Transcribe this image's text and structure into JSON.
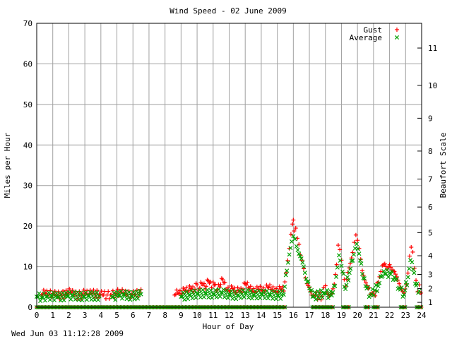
{
  "chart_data": {
    "type": "scatter",
    "title": "Wind Speed - 02 June 2009",
    "xlabel": "Hour of Day",
    "ylabel": "Miles per Hour",
    "y2label": "Beaufort Scale",
    "footer": "Wed Jun 03 11:12:28 2009",
    "xlim": [
      0,
      24
    ],
    "ylim": [
      0,
      70
    ],
    "x_ticks": [
      "0",
      "1",
      "2",
      "3",
      "4",
      "5",
      "6",
      "7",
      "8",
      "9",
      "10",
      "11",
      "12",
      "13",
      "14",
      "15",
      "16",
      "17",
      "18",
      "19",
      "20",
      "21",
      "22",
      "23",
      "24"
    ],
    "y_ticks": [
      "0",
      "10",
      "20",
      "30",
      "40",
      "50",
      "60",
      "70"
    ],
    "beaufort_ticks": [
      {
        "label": "1",
        "mph": 1.2
      },
      {
        "label": "2",
        "mph": 4.6
      },
      {
        "label": "3",
        "mph": 8.1
      },
      {
        "label": "4",
        "mph": 12.7
      },
      {
        "label": "5",
        "mph": 18.4
      },
      {
        "label": "6",
        "mph": 24.7
      },
      {
        "label": "7",
        "mph": 31.6
      },
      {
        "label": "8",
        "mph": 38.5
      },
      {
        "label": "9",
        "mph": 46.6
      },
      {
        "label": "10",
        "mph": 54.7
      },
      {
        "label": "11",
        "mph": 63.9
      }
    ],
    "grid": true,
    "legend_position": "top-right",
    "series": [
      {
        "name": "Gust",
        "marker": "+",
        "color": "#ff0000",
        "points": [
          [
            0.3,
            3
          ],
          [
            0.5,
            3.5
          ],
          [
            0.7,
            3
          ],
          [
            1.0,
            3.4
          ],
          [
            1.2,
            2.9
          ],
          [
            1.5,
            3
          ],
          [
            1.9,
            3.3
          ],
          [
            2.1,
            3.8
          ],
          [
            2.3,
            3
          ],
          [
            2.8,
            3
          ],
          [
            3.0,
            3.5
          ],
          [
            3.2,
            3
          ],
          [
            3.4,
            3.4
          ],
          [
            3.9,
            3.2
          ],
          [
            4.1,
            3
          ],
          [
            4.6,
            3
          ],
          [
            4.9,
            3.3
          ],
          [
            5.2,
            3.8
          ],
          [
            5.4,
            3.4
          ],
          [
            5.6,
            3
          ],
          [
            5.9,
            3.2
          ],
          [
            6.1,
            3
          ],
          [
            6.4,
            3.6
          ],
          [
            6.5,
            4.4
          ],
          [
            8.6,
            3
          ],
          [
            8.8,
            3.5
          ],
          [
            9.0,
            3
          ],
          [
            9.2,
            4.2
          ],
          [
            9.4,
            3.8
          ],
          [
            9.6,
            4.6
          ],
          [
            9.8,
            3.9
          ],
          [
            10.0,
            5.5
          ],
          [
            10.1,
            4.2
          ],
          [
            10.3,
            5.8
          ],
          [
            10.5,
            4.5
          ],
          [
            10.7,
            6.5
          ],
          [
            10.9,
            4.8
          ],
          [
            11.0,
            6.2
          ],
          [
            11.2,
            4
          ],
          [
            11.4,
            5
          ],
          [
            11.6,
            6.8
          ],
          [
            11.8,
            4.4
          ],
          [
            12.0,
            3.8
          ],
          [
            12.2,
            4.6
          ],
          [
            12.4,
            3.5
          ],
          [
            12.6,
            4.1
          ],
          [
            12.8,
            3.6
          ],
          [
            13.0,
            5.8
          ],
          [
            13.2,
            4.8
          ],
          [
            13.4,
            4
          ],
          [
            13.6,
            3.6
          ],
          [
            13.8,
            4.4
          ],
          [
            14.0,
            4.2
          ],
          [
            14.2,
            3.7
          ],
          [
            14.4,
            5
          ],
          [
            14.6,
            4.4
          ],
          [
            14.8,
            4
          ],
          [
            15.0,
            3.6
          ],
          [
            15.2,
            4.5
          ],
          [
            15.4,
            4
          ],
          [
            15.55,
            8.5
          ],
          [
            15.65,
            11.5
          ],
          [
            15.75,
            14.5
          ],
          [
            15.85,
            18
          ],
          [
            15.95,
            20.5
          ],
          [
            16.0,
            21.5
          ],
          [
            16.05,
            18.8
          ],
          [
            16.15,
            19.5
          ],
          [
            16.25,
            17
          ],
          [
            16.35,
            15.5
          ],
          [
            16.45,
            12.8
          ],
          [
            16.55,
            11.6
          ],
          [
            16.65,
            9.5
          ],
          [
            16.75,
            7.2
          ],
          [
            16.85,
            5.8
          ],
          [
            17.0,
            4.8
          ],
          [
            17.15,
            3
          ],
          [
            17.3,
            2.8
          ],
          [
            17.8,
            2.7
          ],
          [
            17.9,
            4.8
          ],
          [
            18.0,
            5.3
          ],
          [
            18.1,
            3.5
          ],
          [
            18.25,
            2.8
          ],
          [
            18.4,
            3.4
          ],
          [
            18.55,
            5.7
          ],
          [
            18.7,
            10.5
          ],
          [
            18.8,
            15.3
          ],
          [
            18.9,
            14.2
          ],
          [
            19.0,
            11.6
          ],
          [
            19.1,
            8.5
          ],
          [
            19.25,
            5.2
          ],
          [
            19.4,
            8.6
          ],
          [
            19.55,
            10.8
          ],
          [
            19.7,
            13.5
          ],
          [
            19.8,
            16
          ],
          [
            19.9,
            17.8
          ],
          [
            20.0,
            16.5
          ],
          [
            20.1,
            14.5
          ],
          [
            20.2,
            11.8
          ],
          [
            20.3,
            9
          ],
          [
            20.45,
            6.7
          ],
          [
            20.6,
            5.3
          ],
          [
            20.8,
            3.2
          ],
          [
            20.95,
            3.5
          ],
          [
            21.1,
            2.8
          ],
          [
            21.3,
            6.2
          ],
          [
            21.45,
            8.8
          ],
          [
            21.55,
            10.3
          ],
          [
            21.7,
            10.7
          ],
          [
            21.85,
            9.4
          ],
          [
            22.0,
            10.5
          ],
          [
            22.15,
            9.2
          ],
          [
            22.3,
            8.8
          ],
          [
            22.45,
            7.5
          ],
          [
            22.6,
            5.8
          ],
          [
            22.75,
            4.2
          ],
          [
            22.9,
            3.5
          ],
          [
            23.05,
            5.5
          ],
          [
            23.15,
            8.4
          ],
          [
            23.25,
            12.6
          ],
          [
            23.35,
            14.8
          ],
          [
            23.45,
            13.6
          ],
          [
            23.55,
            9.6
          ],
          [
            23.65,
            6.6
          ],
          [
            23.75,
            3.8
          ],
          [
            23.85,
            5.5
          ],
          [
            23.95,
            3.5
          ]
        ]
      },
      {
        "name": "Average",
        "marker": "x",
        "color": "#00a000",
        "points": [
          [
            0.0,
            2.6
          ],
          [
            0.3,
            2.4
          ],
          [
            0.6,
            2.6
          ],
          [
            0.9,
            2.8
          ],
          [
            1.3,
            2.5
          ],
          [
            1.9,
            2.7
          ],
          [
            2.2,
            2.9
          ],
          [
            2.9,
            2.6
          ],
          [
            3.2,
            2.8
          ],
          [
            3.9,
            2.7
          ],
          [
            4.7,
            2.5
          ],
          [
            5.1,
            2.9
          ],
          [
            5.4,
            3.1
          ],
          [
            5.9,
            2.7
          ],
          [
            6.5,
            3.2
          ],
          [
            9.0,
            2.6
          ],
          [
            9.5,
            3
          ],
          [
            10.0,
            3.3
          ],
          [
            10.5,
            3.4
          ],
          [
            11.0,
            3.2
          ],
          [
            11.5,
            3.6
          ],
          [
            12.0,
            3.1
          ],
          [
            12.5,
            2.9
          ],
          [
            13.0,
            3.5
          ],
          [
            13.5,
            3
          ],
          [
            14.0,
            3.2
          ],
          [
            14.5,
            3.1
          ],
          [
            15.0,
            2.9
          ],
          [
            15.4,
            3.1
          ],
          [
            15.6,
            9
          ],
          [
            15.75,
            13
          ],
          [
            15.9,
            16.2
          ],
          [
            16.0,
            17.5
          ],
          [
            16.1,
            16.8
          ],
          [
            16.2,
            15
          ],
          [
            16.35,
            13.2
          ],
          [
            16.5,
            12
          ],
          [
            16.65,
            10
          ],
          [
            16.8,
            7
          ],
          [
            17.0,
            4.7
          ],
          [
            17.2,
            2.6
          ],
          [
            17.95,
            3.5
          ],
          [
            18.4,
            2.9
          ],
          [
            18.6,
            5.2
          ],
          [
            18.75,
            9.8
          ],
          [
            18.85,
            12.8
          ],
          [
            19.0,
            10.2
          ],
          [
            19.25,
            4.5
          ],
          [
            19.5,
            8.5
          ],
          [
            19.7,
            11.5
          ],
          [
            19.85,
            14.5
          ],
          [
            19.95,
            15.6
          ],
          [
            20.1,
            13.2
          ],
          [
            20.3,
            8.2
          ],
          [
            20.5,
            5.2
          ],
          [
            20.8,
            2.9
          ],
          [
            21.3,
            5.2
          ],
          [
            21.5,
            7.5
          ],
          [
            21.7,
            8.2
          ],
          [
            22.0,
            8.4
          ],
          [
            22.3,
            7.4
          ],
          [
            22.6,
            4.8
          ],
          [
            22.9,
            3.1
          ],
          [
            23.15,
            7.4
          ],
          [
            23.3,
            11.6
          ],
          [
            23.4,
            11.1
          ],
          [
            23.6,
            5.8
          ],
          [
            23.85,
            4
          ]
        ]
      }
    ],
    "calm_marker_ranges": [
      [
        0,
        15.5
      ],
      [
        17.2,
        18.5
      ],
      [
        19.1,
        19.5
      ],
      [
        20.5,
        20.7
      ],
      [
        21.0,
        21.3
      ],
      [
        22.7,
        23.0
      ],
      [
        23.7,
        24
      ]
    ]
  }
}
